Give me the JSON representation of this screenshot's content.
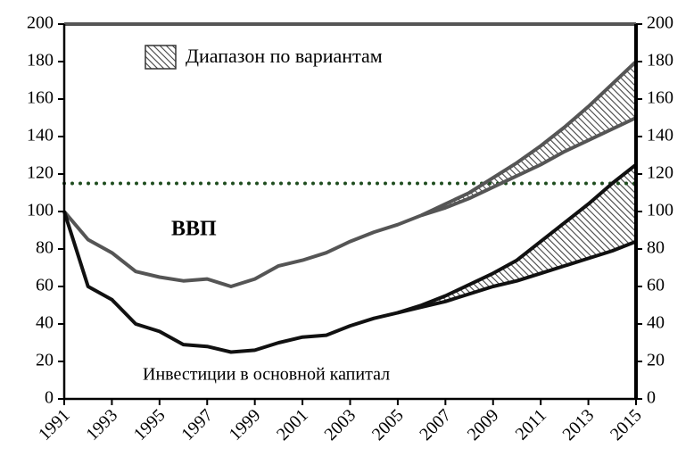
{
  "chart_data": {
    "type": "line",
    "legend": "Диапазон по вариантам",
    "annotations": [
      "ВВП",
      "Инвестиции в основной капитал"
    ],
    "x": [
      1991,
      1992,
      1993,
      1994,
      1995,
      1996,
      1997,
      1998,
      1999,
      2000,
      2001,
      2002,
      2003,
      2004,
      2005,
      2006,
      2007,
      2008,
      2009,
      2010,
      2011,
      2012,
      2013,
      2014,
      2015
    ],
    "xlim": [
      1991,
      2015
    ],
    "xticks": [
      1991,
      1993,
      1995,
      1997,
      1999,
      2001,
      2003,
      2005,
      2007,
      2009,
      2011,
      2013,
      2015
    ],
    "ylim": [
      0,
      200
    ],
    "yticks": [
      0,
      20,
      40,
      60,
      80,
      100,
      120,
      140,
      160,
      180,
      200
    ],
    "y2lim": [
      0,
      200
    ],
    "y2ticks": [
      0,
      20,
      40,
      60,
      80,
      100,
      120,
      140,
      160,
      180,
      200
    ],
    "reference_line": {
      "value": 115,
      "color": "#1f4d1f"
    },
    "series": [
      {
        "color": "#555555",
        "values": [
          100,
          85,
          78,
          68,
          65,
          63,
          64,
          60,
          64,
          71,
          74,
          78,
          84,
          89,
          93,
          98,
          104,
          110,
          118,
          126,
          135,
          145,
          156,
          168,
          180
        ]
      },
      {
        "color": "#555555",
        "values": [
          null,
          null,
          null,
          null,
          null,
          null,
          null,
          null,
          null,
          null,
          null,
          null,
          null,
          null,
          null,
          98,
          102,
          107,
          113,
          119,
          125,
          132,
          138,
          144,
          150
        ]
      },
      {
        "color": "#111111",
        "values": [
          100,
          60,
          53,
          40,
          36,
          29,
          28,
          25,
          26,
          30,
          33,
          34,
          39,
          43,
          46,
          50,
          55,
          61,
          67,
          74,
          84,
          94,
          104,
          115,
          125
        ]
      },
      {
        "color": "#111111",
        "values": [
          null,
          null,
          null,
          null,
          null,
          null,
          null,
          null,
          null,
          null,
          null,
          null,
          null,
          null,
          46,
          49,
          52,
          56,
          60,
          63,
          67,
          71,
          75,
          79,
          84
        ]
      }
    ],
    "bands": [
      [
        0,
        1
      ],
      [
        2,
        3
      ]
    ]
  }
}
